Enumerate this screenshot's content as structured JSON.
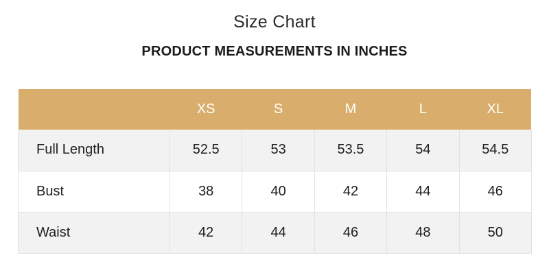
{
  "title": "Size Chart",
  "subtitle": "PRODUCT MEASUREMENTS IN INCHES",
  "colors": {
    "header_background": "#d9ae6c",
    "header_text": "#ffffff",
    "row_shade": "#f2f2f2"
  },
  "table": {
    "corner": "",
    "headers": [
      "XS",
      "S",
      "M",
      "L",
      "XL"
    ],
    "rows": [
      {
        "label": "Full Length",
        "values": [
          "52.5",
          "53",
          "53.5",
          "54",
          "54.5"
        ]
      },
      {
        "label": "Bust",
        "values": [
          "38",
          "40",
          "42",
          "44",
          "46"
        ]
      },
      {
        "label": "Waist",
        "values": [
          "42",
          "44",
          "46",
          "48",
          "50"
        ]
      }
    ]
  }
}
